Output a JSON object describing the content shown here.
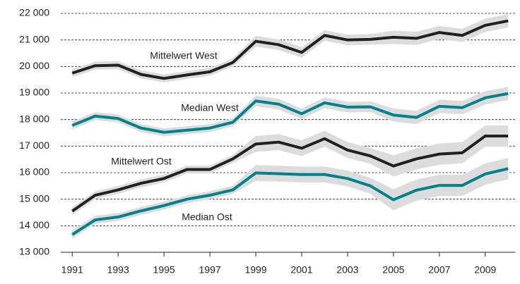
{
  "chart_data": {
    "type": "line",
    "x": [
      1991,
      1992,
      1993,
      1994,
      1995,
      1996,
      1997,
      1998,
      1999,
      2000,
      2001,
      2002,
      2003,
      2004,
      2005,
      2006,
      2007,
      2008,
      2009,
      2010
    ],
    "xlim": [
      1990.5,
      2010.3
    ],
    "xticks": [
      1991,
      1993,
      1995,
      1997,
      1999,
      2001,
      2003,
      2005,
      2007,
      2009
    ],
    "ylim": [
      13000,
      22000
    ],
    "yticks": [
      {
        "value": 13000,
        "label": "13 000"
      },
      {
        "value": 14000,
        "label": "14 000"
      },
      {
        "value": 15000,
        "label": "15 000"
      },
      {
        "value": 16000,
        "label": "16 000"
      },
      {
        "value": 17000,
        "label": "17 000"
      },
      {
        "value": 18000,
        "label": "18 000"
      },
      {
        "value": 19000,
        "label": "19 000"
      },
      {
        "value": 20000,
        "label": "20 000"
      },
      {
        "value": 21000,
        "label": "21 000"
      },
      {
        "value": 22000,
        "label": "22 000"
      }
    ],
    "grid": true,
    "band_color": "#dcdcdc",
    "series": [
      {
        "name": "Mittelwert West",
        "color": "#231f20",
        "values": [
          19750,
          20030,
          20050,
          19700,
          19550,
          19680,
          19800,
          20150,
          20950,
          20820,
          20530,
          21170,
          21000,
          21020,
          21100,
          21060,
          21280,
          21170,
          21550,
          21720
        ],
        "lower": [
          19600,
          19880,
          19900,
          19550,
          19400,
          19530,
          19650,
          20000,
          20750,
          20620,
          20330,
          20970,
          20800,
          20820,
          20850,
          20810,
          21030,
          20920,
          21300,
          21470
        ],
        "upper": [
          19900,
          20180,
          20200,
          19850,
          19700,
          19830,
          19950,
          20300,
          21150,
          21020,
          20730,
          21370,
          21200,
          21220,
          21350,
          21310,
          21530,
          21420,
          21800,
          21970
        ]
      },
      {
        "name": "Median West",
        "color": "#00808a",
        "values": [
          17780,
          18130,
          18040,
          17680,
          17520,
          17600,
          17680,
          17900,
          18700,
          18580,
          18220,
          18630,
          18470,
          18480,
          18170,
          18080,
          18500,
          18450,
          18820,
          18980
        ],
        "lower": [
          17630,
          17980,
          17890,
          17530,
          17370,
          17450,
          17530,
          17750,
          18500,
          18380,
          18020,
          18430,
          18270,
          18280,
          17920,
          17830,
          18250,
          18200,
          18570,
          18730
        ],
        "upper": [
          17930,
          18280,
          18190,
          17830,
          17670,
          17750,
          17830,
          18050,
          18900,
          18780,
          18420,
          18830,
          18670,
          18680,
          18420,
          18330,
          18750,
          18700,
          19070,
          19230
        ]
      },
      {
        "name": "Mittelwert Ost",
        "color": "#231f20",
        "values": [
          14550,
          15150,
          15350,
          15600,
          15780,
          16120,
          16120,
          16520,
          17080,
          17150,
          16920,
          17280,
          16850,
          16630,
          16250,
          16520,
          16700,
          16750,
          17380,
          17380
        ],
        "lower": [
          14400,
          15000,
          15200,
          15450,
          15630,
          15970,
          15970,
          16370,
          16780,
          16850,
          16620,
          16980,
          16550,
          16330,
          15850,
          16120,
          16300,
          16350,
          16980,
          16980
        ],
        "upper": [
          14700,
          15300,
          15500,
          15750,
          15930,
          16270,
          16270,
          16670,
          17380,
          17450,
          17220,
          17580,
          17150,
          16930,
          16650,
          16920,
          17100,
          17150,
          17780,
          17780
        ]
      },
      {
        "name": "Median Ost",
        "color": "#00808a",
        "values": [
          13670,
          14220,
          14330,
          14560,
          14760,
          15000,
          15150,
          15350,
          15990,
          15960,
          15930,
          15930,
          15780,
          15500,
          14980,
          15340,
          15520,
          15520,
          15950,
          16150
        ],
        "lower": [
          13520,
          14070,
          14180,
          14410,
          14610,
          14850,
          15000,
          15200,
          15690,
          15660,
          15630,
          15630,
          15480,
          15200,
          14580,
          14940,
          15120,
          15120,
          15550,
          15750
        ],
        "upper": [
          13820,
          14370,
          14480,
          14710,
          14910,
          15150,
          15300,
          15500,
          16290,
          16260,
          16230,
          16230,
          16080,
          15800,
          15380,
          15740,
          15920,
          15920,
          16350,
          16550
        ]
      }
    ]
  }
}
